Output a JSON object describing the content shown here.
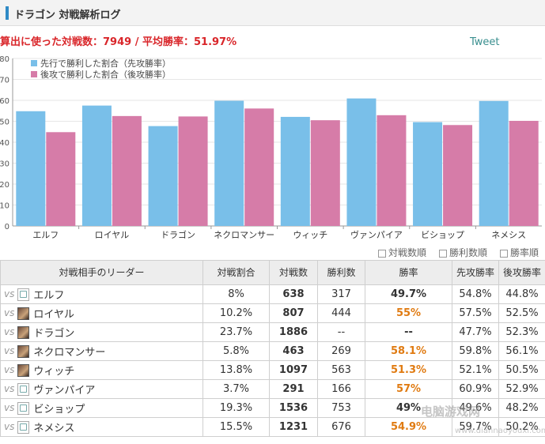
{
  "header": {
    "title": "ドラゴン 対戦解析ログ"
  },
  "summary": "算出に使った対戦数：7949 / 平均勝率：51.97%",
  "tweet_label": "Tweet",
  "colors": {
    "first": "#79bfe9",
    "second": "#d67ca8",
    "orange": "#e07b12",
    "red": "#d9262a"
  },
  "chart_data": {
    "type": "bar",
    "categories": [
      "エルフ",
      "ロイヤル",
      "ドラゴン",
      "ネクロマンサー",
      "ウィッチ",
      "ヴァンパイア",
      "ビショップ",
      "ネメシス"
    ],
    "series": [
      {
        "name": "先行で勝利した割合（先攻勝率）",
        "values": [
          54.8,
          57.5,
          47.7,
          59.8,
          52.1,
          60.9,
          49.6,
          59.7
        ]
      },
      {
        "name": "後攻で勝利した割合（後攻勝率）",
        "values": [
          44.8,
          52.5,
          52.3,
          56.1,
          50.5,
          52.9,
          48.2,
          50.2
        ]
      }
    ],
    "yticks": [
      0,
      10,
      20,
      30,
      40,
      50,
      60,
      70,
      80
    ],
    "ylim": [
      0,
      80
    ],
    "grid": true,
    "legend": "top-left"
  },
  "sort_options": [
    "対戦数順",
    "勝利数順",
    "勝率順"
  ],
  "table": {
    "headers": [
      "対戦相手のリーダー",
      "対戦割合",
      "対戦数",
      "勝利数",
      "勝率",
      "先攻勝率",
      "後攻勝率"
    ],
    "rows": [
      {
        "vs": "vs",
        "leader": "エルフ",
        "share": "8%",
        "games": "638",
        "wins": "317",
        "rate": "49.7%",
        "first": "54.8%",
        "second": "44.8%",
        "avatar": "broken"
      },
      {
        "vs": "vs",
        "leader": "ロイヤル",
        "share": "10.2%",
        "games": "807",
        "wins": "444",
        "rate": "55%",
        "first": "57.5%",
        "second": "52.5%",
        "avatar": "img"
      },
      {
        "vs": "vs",
        "leader": "ドラゴン",
        "share": "23.7%",
        "games": "1886",
        "wins": "--",
        "rate": "--",
        "first": "47.7%",
        "second": "52.3%",
        "avatar": "img"
      },
      {
        "vs": "vs",
        "leader": "ネクロマンサー",
        "share": "5.8%",
        "games": "463",
        "wins": "269",
        "rate": "58.1%",
        "first": "59.8%",
        "second": "56.1%",
        "avatar": "img"
      },
      {
        "vs": "vs",
        "leader": "ウィッチ",
        "share": "13.8%",
        "games": "1097",
        "wins": "563",
        "rate": "51.3%",
        "first": "52.1%",
        "second": "50.5%",
        "avatar": "img"
      },
      {
        "vs": "vs",
        "leader": "ヴァンパイア",
        "share": "3.7%",
        "games": "291",
        "wins": "166",
        "rate": "57%",
        "first": "60.9%",
        "second": "52.9%",
        "avatar": "broken"
      },
      {
        "vs": "vs",
        "leader": "ビショップ",
        "share": "19.3%",
        "games": "1536",
        "wins": "753",
        "rate": "49%",
        "first": "49.6%",
        "second": "48.2%",
        "avatar": "broken"
      },
      {
        "vs": "vs",
        "leader": "ネメシス",
        "share": "15.5%",
        "games": "1231",
        "wins": "676",
        "rate": "54.9%",
        "first": "59.7%",
        "second": "50.2%",
        "avatar": "broken"
      }
    ],
    "rate_classes": [
      "",
      "orange",
      "dash",
      "orange",
      "orange",
      "orange",
      "",
      "orange"
    ]
  },
  "watermark": {
    "main": "电脑游戏网",
    "sub": "www.diannaoyouxi.com"
  }
}
